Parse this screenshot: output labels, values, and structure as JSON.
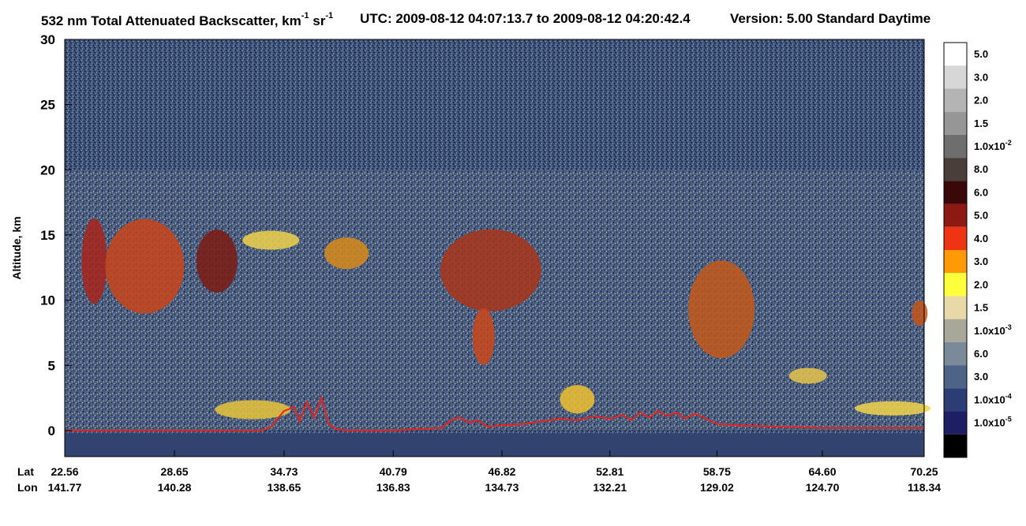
{
  "title": {
    "main": "532 nm Total Attenuated Backscatter, km",
    "unit_exp1": "-1",
    "unit_mid": " sr",
    "unit_exp2": "-1",
    "utc": "UTC:  2009-08-12 04:07:13.7  to  2009-08-12 04:20:42.4",
    "version": "Version: 5.00  Standard  Daytime"
  },
  "chart_data": {
    "type": "heatmap",
    "title": "532 nm Total Attenuated Backscatter, km-1 sr-1",
    "ylabel": "Altitude, km",
    "ylim": [
      -2,
      30
    ],
    "yticks": [
      0,
      5,
      10,
      15,
      20,
      25,
      30
    ],
    "x_row_labels": [
      "Lat",
      "Lon"
    ],
    "x_ticks": [
      {
        "lat": "22.56",
        "lon": "141.77"
      },
      {
        "lat": "28.65",
        "lon": "140.28"
      },
      {
        "lat": "34.73",
        "lon": "138.65"
      },
      {
        "lat": "40.79",
        "lon": "136.83"
      },
      {
        "lat": "46.82",
        "lon": "134.73"
      },
      {
        "lat": "52.81",
        "lon": "132.21"
      },
      {
        "lat": "58.75",
        "lon": "129.02"
      },
      {
        "lat": "64.60",
        "lon": "124.70"
      },
      {
        "lat": "70.25",
        "lon": "118.34"
      }
    ],
    "colorbar": {
      "levels": [
        {
          "label": "5.0",
          "exp": "",
          "color": "#ffffff"
        },
        {
          "label": "3.0",
          "exp": "",
          "color": "#d7d7d7"
        },
        {
          "label": "2.0",
          "exp": "",
          "color": "#b4b4b4"
        },
        {
          "label": "1.5",
          "exp": "",
          "color": "#969696"
        },
        {
          "label": "1.0x10",
          "exp": "-2",
          "color": "#6e6e6e"
        },
        {
          "label": "8.0",
          "exp": "",
          "color": "#4a3e3a"
        },
        {
          "label": "6.0",
          "exp": "",
          "color": "#3a0808"
        },
        {
          "label": "5.0",
          "exp": "",
          "color": "#8c1a12"
        },
        {
          "label": "4.0",
          "exp": "",
          "color": "#ee3412"
        },
        {
          "label": "3.0",
          "exp": "",
          "color": "#ff9a06"
        },
        {
          "label": "2.0",
          "exp": "",
          "color": "#ffff3c"
        },
        {
          "label": "1.5",
          "exp": "",
          "color": "#ead9a8"
        },
        {
          "label": "1.0x10",
          "exp": "-3",
          "color": "#a8a89a"
        },
        {
          "label": "6.0",
          "exp": "",
          "color": "#7b8a98"
        },
        {
          "label": "3.0",
          "exp": "",
          "color": "#4d6488"
        },
        {
          "label": "1.0x10",
          "exp": "-4",
          "color": "#2c3c74"
        },
        {
          "label": "1.0x10",
          "exp": "-5",
          "color": "#1e1e64"
        },
        {
          "label": "",
          "exp": "",
          "color": "#000000"
        }
      ]
    },
    "surface_line": {
      "name": "",
      "color": "#e8231c",
      "x_lat": [
        22.56,
        25.0,
        28.65,
        31.0,
        33.5,
        34.0,
        34.73,
        35.3,
        35.6,
        36.0,
        36.4,
        36.8,
        37.2,
        37.6,
        38.2,
        40.79,
        43.5,
        44.0,
        44.5,
        45.0,
        45.5,
        46.0,
        46.82,
        48.0,
        49.0,
        50.0,
        51.0,
        52.0,
        52.81,
        53.5,
        54.0,
        54.5,
        55.0,
        55.5,
        56.0,
        56.5,
        57.0,
        57.5,
        58.0,
        58.75,
        60.0,
        62.0,
        64.6,
        67.0,
        70.25
      ],
      "y_km": [
        0.0,
        0.0,
        0.0,
        0.0,
        0.0,
        0.3,
        1.5,
        1.8,
        0.7,
        2.2,
        1.0,
        2.5,
        0.5,
        0.1,
        0.0,
        0.0,
        0.2,
        0.8,
        1.0,
        0.6,
        0.8,
        0.3,
        0.4,
        0.5,
        0.7,
        0.9,
        0.8,
        1.1,
        0.9,
        1.2,
        0.8,
        1.4,
        1.0,
        1.5,
        1.1,
        1.4,
        0.9,
        1.3,
        1.0,
        0.5,
        0.4,
        0.3,
        0.2,
        0.2,
        0.2
      ]
    }
  }
}
